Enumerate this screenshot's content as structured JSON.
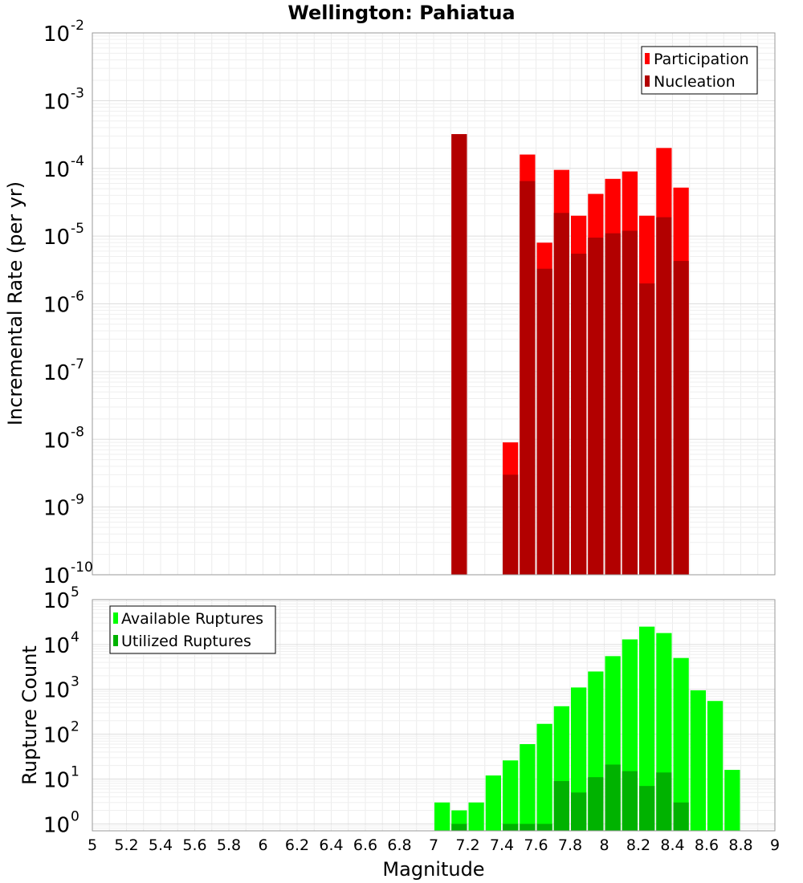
{
  "title": "Wellington: Pahiatua",
  "chart_data": [
    {
      "type": "bar",
      "ylabel": "Incremental Rate (per yr)",
      "yscale": "log",
      "ylim": [
        1e-10,
        0.01
      ],
      "xlim": [
        5,
        9
      ],
      "legend": "top-right",
      "grid": true,
      "series": [
        {
          "name": "Participation",
          "color": "#ff0000",
          "points": [
            {
              "x": 7.1,
              "y": 0.00032
            },
            {
              "x": 7.4,
              "y": 9e-09
            },
            {
              "x": 7.5,
              "y": 0.00016
            },
            {
              "x": 7.6,
              "y": 8e-06
            },
            {
              "x": 7.7,
              "y": 9.5e-05
            },
            {
              "x": 7.8,
              "y": 2e-05
            },
            {
              "x": 7.9,
              "y": 4.2e-05
            },
            {
              "x": 8.0,
              "y": 7e-05
            },
            {
              "x": 8.1,
              "y": 9e-05
            },
            {
              "x": 8.2,
              "y": 2e-05
            },
            {
              "x": 8.3,
              "y": 0.0002
            },
            {
              "x": 8.4,
              "y": 5.2e-05
            }
          ]
        },
        {
          "name": "Nucleation",
          "color": "#b20000",
          "points": [
            {
              "x": 7.1,
              "y": 0.00032
            },
            {
              "x": 7.4,
              "y": 3e-09
            },
            {
              "x": 7.5,
              "y": 6.5e-05
            },
            {
              "x": 7.6,
              "y": 3.3e-06
            },
            {
              "x": 7.7,
              "y": 2.2e-05
            },
            {
              "x": 7.8,
              "y": 5.5e-06
            },
            {
              "x": 7.9,
              "y": 9.5e-06
            },
            {
              "x": 8.0,
              "y": 1.1e-05
            },
            {
              "x": 8.1,
              "y": 1.2e-05
            },
            {
              "x": 8.2,
              "y": 2e-06
            },
            {
              "x": 8.3,
              "y": 1.9e-05
            },
            {
              "x": 8.4,
              "y": 4.3e-06
            }
          ]
        }
      ]
    },
    {
      "type": "bar",
      "xlabel": "Magnitude",
      "ylabel": "Rupture Count",
      "yscale": "log",
      "ylim": [
        0.7,
        100000.0
      ],
      "xlim": [
        5,
        9
      ],
      "legend": "top-left",
      "grid": true,
      "series": [
        {
          "name": "Available Ruptures",
          "color": "#00ff00",
          "points": [
            {
              "x": 7.0,
              "y": 3
            },
            {
              "x": 7.1,
              "y": 2
            },
            {
              "x": 7.2,
              "y": 3
            },
            {
              "x": 7.3,
              "y": 12
            },
            {
              "x": 7.4,
              "y": 26
            },
            {
              "x": 7.5,
              "y": 60
            },
            {
              "x": 7.6,
              "y": 170
            },
            {
              "x": 7.7,
              "y": 420
            },
            {
              "x": 7.8,
              "y": 1100
            },
            {
              "x": 7.9,
              "y": 2500
            },
            {
              "x": 8.0,
              "y": 5500
            },
            {
              "x": 8.1,
              "y": 13000
            },
            {
              "x": 8.2,
              "y": 25000
            },
            {
              "x": 8.3,
              "y": 18000
            },
            {
              "x": 8.4,
              "y": 5000
            },
            {
              "x": 8.5,
              "y": 950
            },
            {
              "x": 8.6,
              "y": 550
            },
            {
              "x": 8.7,
              "y": 16
            }
          ]
        },
        {
          "name": "Utilized Ruptures",
          "color": "#00b200",
          "points": [
            {
              "x": 7.1,
              "y": 1
            },
            {
              "x": 7.4,
              "y": 1
            },
            {
              "x": 7.5,
              "y": 1
            },
            {
              "x": 7.6,
              "y": 1
            },
            {
              "x": 7.7,
              "y": 9
            },
            {
              "x": 7.8,
              "y": 5
            },
            {
              "x": 7.9,
              "y": 11
            },
            {
              "x": 8.0,
              "y": 21
            },
            {
              "x": 8.1,
              "y": 15
            },
            {
              "x": 8.2,
              "y": 7
            },
            {
              "x": 8.3,
              "y": 14
            },
            {
              "x": 8.4,
              "y": 3
            }
          ]
        }
      ]
    }
  ],
  "x_ticks": [
    "5",
    "5.2",
    "5.4",
    "5.6",
    "5.8",
    "6",
    "6.2",
    "6.4",
    "6.6",
    "6.8",
    "7",
    "7.2",
    "7.4",
    "7.6",
    "7.8",
    "8",
    "8.2",
    "8.4",
    "8.6",
    "8.8",
    "9"
  ],
  "top_y_ticks": [
    {
      "base": "10",
      "exp": "-2"
    },
    {
      "base": "10",
      "exp": "-3"
    },
    {
      "base": "10",
      "exp": "-4"
    },
    {
      "base": "10",
      "exp": "-5"
    },
    {
      "base": "10",
      "exp": "-6"
    },
    {
      "base": "10",
      "exp": "-7"
    },
    {
      "base": "10",
      "exp": "-8"
    },
    {
      "base": "10",
      "exp": "-9"
    },
    {
      "base": "10",
      "exp": "-10"
    }
  ],
  "bottom_y_ticks": [
    {
      "base": "10",
      "exp": "5"
    },
    {
      "base": "10",
      "exp": "4"
    },
    {
      "base": "10",
      "exp": "3"
    },
    {
      "base": "10",
      "exp": "2"
    },
    {
      "base": "10",
      "exp": "1"
    },
    {
      "base": "10",
      "exp": "0"
    }
  ]
}
